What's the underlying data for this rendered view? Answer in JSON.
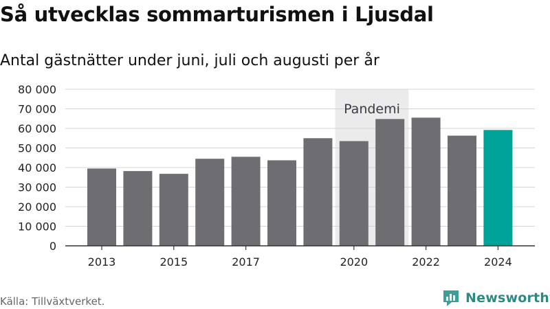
{
  "title": "Så utvecklas sommarturismen i Ljusdal",
  "subtitle": "Antal gästnätter under juni, juli och augusti per år",
  "source": "Källa: Tillväxtverket.",
  "brand": {
    "name": "Newsworthy",
    "icon": "newsworthy-logo-icon",
    "color": "#2a8a86"
  },
  "chart_data": {
    "type": "bar",
    "title": "Så utvecklas sommarturismen i Ljusdal",
    "subtitle": "Antal gästnätter under juni, juli och augusti per år",
    "categories": [
      "2013",
      "2014",
      "2015",
      "2016",
      "2017",
      "2018",
      "2019",
      "2020",
      "2021",
      "2022",
      "2023",
      "2024"
    ],
    "values": [
      39500,
      38200,
      36800,
      44500,
      45500,
      43700,
      55000,
      53500,
      64800,
      65500,
      56300,
      59200
    ],
    "highlight_index": 11,
    "colors": {
      "bar": "#6e6d72",
      "highlight": "#00a39a",
      "shade": "#ebebeb"
    },
    "ylim": [
      0,
      80000
    ],
    "yticks": [
      0,
      10000,
      20000,
      30000,
      40000,
      50000,
      60000,
      70000,
      80000
    ],
    "ytick_labels": [
      "0",
      "10 000",
      "20 000",
      "30 000",
      "40 000",
      "50 000",
      "60 000",
      "70 000",
      "80 000"
    ],
    "xtick_labels": [
      "2013",
      "2015",
      "2017",
      "2020",
      "2022",
      "2024"
    ],
    "grid": true,
    "annotation": {
      "label": "Pandemi",
      "span": [
        "2020",
        "2021"
      ]
    }
  }
}
